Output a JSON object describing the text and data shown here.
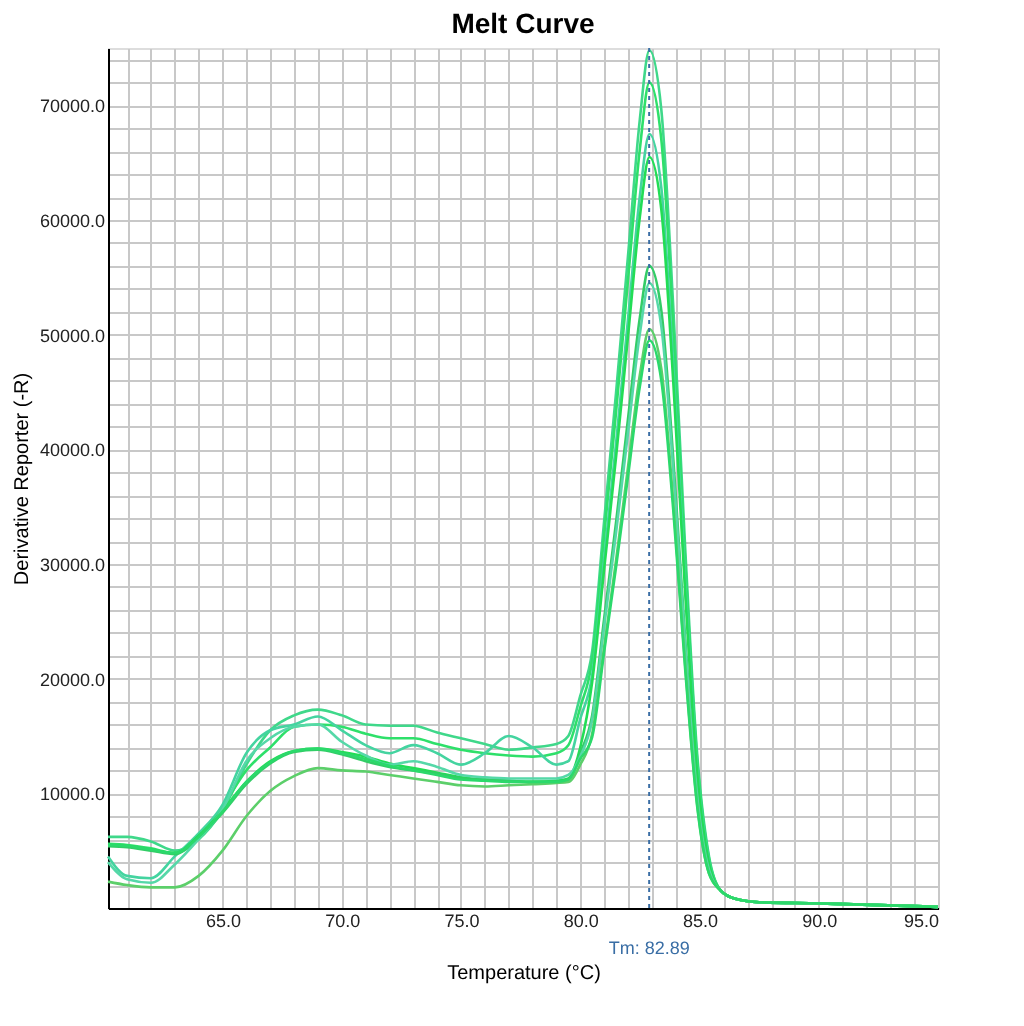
{
  "chart_data": {
    "type": "line",
    "title": "Melt Curve",
    "xlabel": "Temperature (°C)",
    "ylabel": "Derivative Reporter (-R)",
    "x": [
      60.2,
      61,
      62,
      63,
      64,
      65,
      66,
      67,
      68,
      69,
      70,
      71,
      72,
      73,
      74,
      75,
      76,
      77,
      78,
      79,
      79.5,
      80,
      80.5,
      81,
      81.5,
      82,
      82.5,
      82.9,
      83.4,
      83.9,
      84.4,
      84.9,
      85.4,
      85.9,
      86.5,
      87.5,
      90,
      95
    ],
    "series": [
      {
        "color": "#3fd88a",
        "values": [
          6200,
          6200,
          5800,
          5000,
          6000,
          8500,
          12500,
          15500,
          16800,
          17300,
          16800,
          16000,
          15900,
          15900,
          15300,
          14800,
          14300,
          13800,
          14000,
          14300,
          15000,
          18500,
          22400,
          33700,
          44900,
          56800,
          68800,
          74800,
          69600,
          52400,
          31400,
          13500,
          4500,
          1500,
          800,
          500,
          400,
          100
        ]
      },
      {
        "color": "#2ee06a",
        "values": [
          5600,
          5500,
          5200,
          4800,
          6000,
          8800,
          12000,
          14000,
          15800,
          16000,
          15800,
          15200,
          14800,
          14800,
          14300,
          13800,
          13500,
          13300,
          13200,
          13500,
          14200,
          17500,
          21600,
          32400,
          43200,
          54700,
          66200,
          72000,
          67000,
          50400,
          30200,
          13000,
          4300,
          1500,
          800,
          500,
          400,
          100
        ]
      },
      {
        "color": "#44d4a0",
        "values": [
          4500,
          2800,
          2600,
          4500,
          6500,
          9000,
          13500,
          15500,
          16000,
          16700,
          15500,
          14200,
          13500,
          14200,
          13500,
          12500,
          13500,
          15000,
          14000,
          12500,
          12800,
          16500,
          20300,
          30400,
          40500,
          51300,
          62100,
          67500,
          62800,
          47300,
          28400,
          12200,
          4100,
          1500,
          800,
          500,
          400,
          100
        ]
      },
      {
        "color": "#22dd55",
        "values": [
          5500,
          5400,
          5100,
          4800,
          6300,
          8500,
          11000,
          12800,
          13700,
          13900,
          13600,
          13200,
          12600,
          12200,
          11800,
          11400,
          11200,
          11100,
          11000,
          11100,
          11300,
          14000,
          19700,
          29500,
          39300,
          49800,
          60300,
          65500,
          60900,
          45900,
          27500,
          11800,
          3900,
          1500,
          800,
          500,
          400,
          100
        ]
      },
      {
        "color": "#33cc66",
        "values": [
          5400,
          5300,
          5000,
          4700,
          6200,
          8300,
          10800,
          12600,
          13600,
          13800,
          13400,
          12800,
          12300,
          12000,
          11700,
          11300,
          11200,
          11100,
          11000,
          11000,
          11200,
          13500,
          16800,
          25200,
          33600,
          42600,
          51500,
          56000,
          52100,
          39200,
          23500,
          10100,
          3400,
          1500,
          800,
          500,
          400,
          100
        ]
      },
      {
        "color": "#55d8a8",
        "values": [
          4000,
          2500,
          2200,
          3800,
          6000,
          8600,
          12800,
          14800,
          15800,
          16000,
          14500,
          13300,
          12500,
          12800,
          12300,
          11600,
          11400,
          11300,
          11300,
          11300,
          11600,
          13200,
          16400,
          24500,
          32700,
          41400,
          50100,
          54500,
          50700,
          38200,
          22900,
          9800,
          3300,
          1500,
          800,
          500,
          400,
          100
        ]
      },
      {
        "color": "#5ccf6a",
        "values": [
          2300,
          2000,
          1800,
          1800,
          2800,
          5000,
          8000,
          10200,
          11500,
          12200,
          12000,
          11900,
          11600,
          11300,
          11000,
          10700,
          10600,
          10700,
          10800,
          10900,
          11000,
          12500,
          15200,
          22700,
          30300,
          38400,
          46500,
          50500,
          47000,
          35400,
          21200,
          9100,
          3000,
          1500,
          800,
          500,
          400,
          100
        ]
      },
      {
        "color": "#2bd96b",
        "values": [
          5500,
          5400,
          5100,
          4800,
          6200,
          8400,
          11000,
          12700,
          13700,
          13900,
          13500,
          13000,
          12400,
          12000,
          11600,
          11200,
          11100,
          11000,
          11000,
          11000,
          11200,
          13000,
          14900,
          22300,
          29700,
          37600,
          45500,
          49500,
          46000,
          34700,
          20800,
          8900,
          3000,
          1500,
          800,
          500,
          400,
          100
        ]
      }
    ],
    "xlim": [
      60.2,
      95
    ],
    "xticks": [
      {
        "value": 61,
        "label": null
      },
      {
        "value": 62,
        "label": null
      },
      {
        "value": 63,
        "label": null
      },
      {
        "value": 64,
        "label": null
      },
      {
        "value": 65,
        "label": "65.0"
      },
      {
        "value": 66,
        "label": null
      },
      {
        "value": 67,
        "label": null
      },
      {
        "value": 68,
        "label": null
      },
      {
        "value": 69,
        "label": null
      },
      {
        "value": 70,
        "label": "70.0"
      },
      {
        "value": 71,
        "label": null
      },
      {
        "value": 72,
        "label": null
      },
      {
        "value": 73,
        "label": null
      },
      {
        "value": 74,
        "label": null
      },
      {
        "value": 75,
        "label": "75.0"
      },
      {
        "value": 76,
        "label": null
      },
      {
        "value": 77,
        "label": null
      },
      {
        "value": 78,
        "label": null
      },
      {
        "value": 79,
        "label": null
      },
      {
        "value": 80,
        "label": "80.0"
      },
      {
        "value": 81,
        "label": null
      },
      {
        "value": 82,
        "label": null
      },
      {
        "value": 83,
        "label": null
      },
      {
        "value": 84,
        "label": null
      },
      {
        "value": 85,
        "label": "85.0"
      },
      {
        "value": 86,
        "label": null
      },
      {
        "value": 87,
        "label": null
      },
      {
        "value": 88,
        "label": null
      },
      {
        "value": 89,
        "label": null
      },
      {
        "value": 90,
        "label": "90.0"
      },
      {
        "value": 91,
        "label": null
      },
      {
        "value": 92,
        "label": null
      },
      {
        "value": 93,
        "label": null
      },
      {
        "value": 94,
        "label": null
      },
      {
        "value": 95,
        "label": "95.0"
      }
    ],
    "ylim": [
      0,
      75000
    ],
    "yticks": [
      {
        "value": 2000,
        "label": null
      },
      {
        "value": 4000,
        "label": null
      },
      {
        "value": 6000,
        "label": null
      },
      {
        "value": 8000,
        "label": null
      },
      {
        "value": 10000,
        "label": "10000.0"
      },
      {
        "value": 12000,
        "label": null
      },
      {
        "value": 14000,
        "label": null
      },
      {
        "value": 16000,
        "label": null
      },
      {
        "value": 18000,
        "label": null
      },
      {
        "value": 20000,
        "label": "20000.0"
      },
      {
        "value": 22000,
        "label": null
      },
      {
        "value": 24000,
        "label": null
      },
      {
        "value": 26000,
        "label": null
      },
      {
        "value": 28000,
        "label": null
      },
      {
        "value": 30000,
        "label": "30000.0"
      },
      {
        "value": 32000,
        "label": null
      },
      {
        "value": 34000,
        "label": null
      },
      {
        "value": 36000,
        "label": null
      },
      {
        "value": 38000,
        "label": null
      },
      {
        "value": 40000,
        "label": "40000.0"
      },
      {
        "value": 42000,
        "label": null
      },
      {
        "value": 44000,
        "label": null
      },
      {
        "value": 46000,
        "label": null
      },
      {
        "value": 48000,
        "label": null
      },
      {
        "value": 50000,
        "label": "50000.0"
      },
      {
        "value": 52000,
        "label": null
      },
      {
        "value": 54000,
        "label": null
      },
      {
        "value": 56000,
        "label": null
      },
      {
        "value": 58000,
        "label": null
      },
      {
        "value": 60000,
        "label": "60000.0"
      },
      {
        "value": 62000,
        "label": null
      },
      {
        "value": 64000,
        "label": null
      },
      {
        "value": 66000,
        "label": null
      },
      {
        "value": 68000,
        "label": null
      },
      {
        "value": 70000,
        "label": "70000.0"
      },
      {
        "value": 72000,
        "label": null
      },
      {
        "value": 74000,
        "label": null
      }
    ],
    "grid": true,
    "ref_lines": [
      {
        "axis": "x",
        "value": 82.89,
        "label": "Tm: 82.89",
        "color": "#3a6ea5",
        "line_style": "dotted"
      }
    ]
  }
}
